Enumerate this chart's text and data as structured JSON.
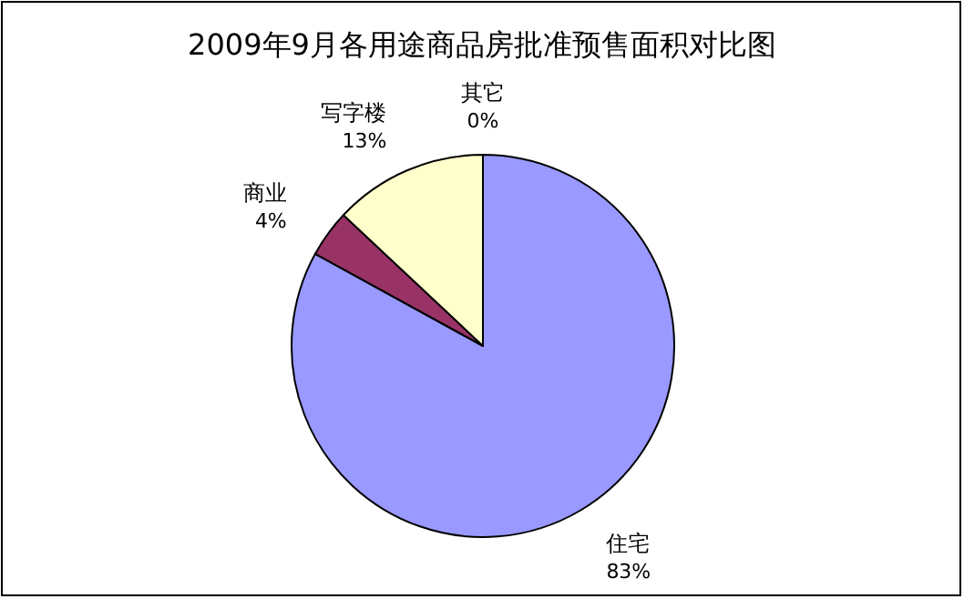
{
  "chart_data": {
    "type": "pie",
    "title": "2009年9月各用途商品房批准预售面积对比图",
    "categories": [
      "住宅",
      "商业",
      "写字楼",
      "其它"
    ],
    "values": [
      83,
      4,
      13,
      0
    ],
    "colors": [
      "#9999ff",
      "#993366",
      "#ffffcc",
      "#ccffff"
    ],
    "value_labels": [
      "83%",
      "4%",
      "13%",
      "0%"
    ]
  }
}
